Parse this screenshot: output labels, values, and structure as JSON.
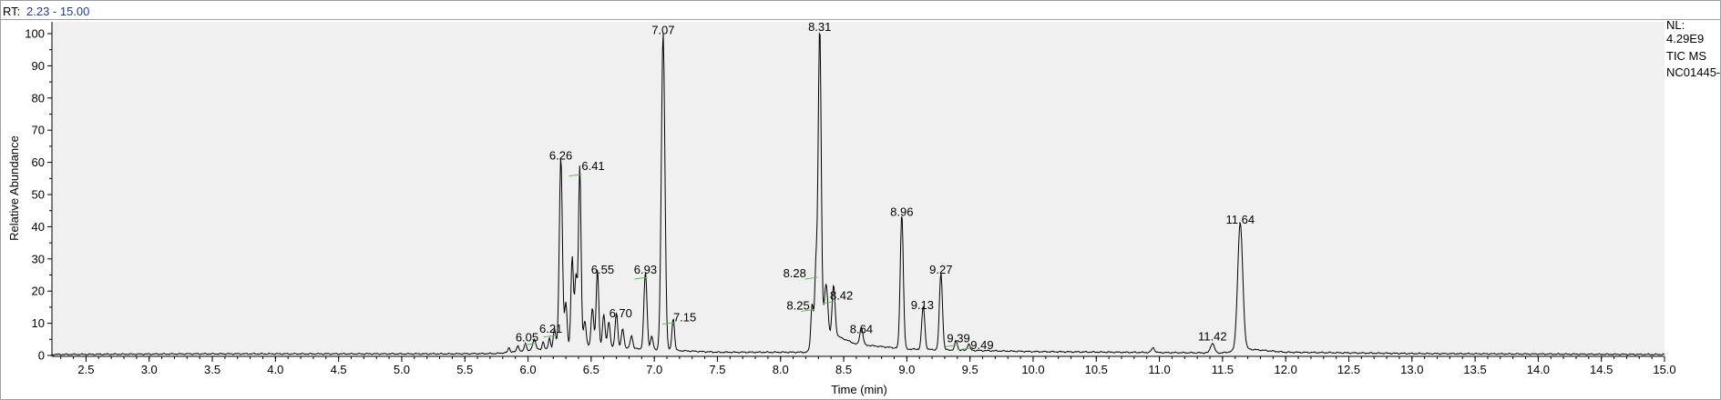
{
  "header": {
    "rt_label": "RT:",
    "rt_range": "2.23 - 15.00"
  },
  "info_panel": {
    "nl_label": "NL:",
    "nl_value": "4.29E9",
    "scan_type": "TIC  MS",
    "file_name": "NC01445-"
  },
  "colors": {
    "trace": "#000000",
    "plot_background": "#f0f0f0",
    "rt_value": "#1f3c96",
    "peak_marker": "#5fb85f"
  },
  "chart_data": {
    "type": "line",
    "title": "",
    "xlabel": "Time (min)",
    "ylabel": "Relative Abundance",
    "xlim": [
      2.23,
      15.0
    ],
    "ylim": [
      0,
      100
    ],
    "x_ticks": [
      2.5,
      3.0,
      3.5,
      4.0,
      4.5,
      5.0,
      5.5,
      6.0,
      6.5,
      7.0,
      7.5,
      8.0,
      8.5,
      9.0,
      9.5,
      10.0,
      10.5,
      11.0,
      11.5,
      12.0,
      12.5,
      13.0,
      13.5,
      14.0,
      14.5,
      15.0
    ],
    "x_tick_labels": [
      "2.5",
      "3.0",
      "3.5",
      "4.0",
      "4.5",
      "5.0",
      "5.5",
      "6.0",
      "6.5",
      "7.0",
      "7.5",
      "8.0",
      "8.5",
      "9.0",
      "9.5",
      "10.0",
      "10.5",
      "11.0",
      "11.5",
      "12.0",
      "12.5",
      "13.0",
      "13.5",
      "14.0",
      "14.5",
      "15.0"
    ],
    "y_ticks": [
      0,
      10,
      20,
      30,
      40,
      50,
      60,
      70,
      80,
      90,
      100
    ],
    "y_tick_labels": [
      "0",
      "10",
      "20",
      "30",
      "40",
      "50",
      "60",
      "70",
      "80",
      "90",
      "100"
    ],
    "baseline": [
      [
        2.23,
        0.3
      ],
      [
        3.4,
        0.5
      ],
      [
        4.6,
        0.5
      ],
      [
        5.4,
        0.5
      ],
      [
        5.75,
        0.6
      ],
      [
        6.0,
        1.5
      ],
      [
        6.5,
        3.0
      ],
      [
        6.9,
        2.0
      ],
      [
        7.5,
        1.0
      ],
      [
        8.2,
        1.0
      ],
      [
        8.45,
        6.0
      ],
      [
        8.6,
        3.5
      ],
      [
        9.0,
        2.0
      ],
      [
        9.6,
        1.5
      ],
      [
        10.0,
        1.2
      ],
      [
        11.0,
        0.9
      ],
      [
        11.5,
        0.8
      ],
      [
        11.7,
        2.0
      ],
      [
        12.0,
        1.0
      ],
      [
        13.0,
        0.6
      ],
      [
        15.0,
        0.3
      ]
    ],
    "peaks": [
      {
        "rt": 5.85,
        "height": 1.5,
        "width": 0.008
      },
      {
        "rt": 5.92,
        "height": 2.0,
        "width": 0.008
      },
      {
        "rt": 5.98,
        "height": 2.5,
        "width": 0.008
      },
      {
        "rt": 6.05,
        "height": 3.5,
        "width": 0.012,
        "label": "6.05"
      },
      {
        "rt": 6.12,
        "height": 2.5,
        "width": 0.008
      },
      {
        "rt": 6.17,
        "height": 3.5,
        "width": 0.008
      },
      {
        "rt": 6.21,
        "height": 6.0,
        "width": 0.01,
        "label": "6.21"
      },
      {
        "rt": 6.26,
        "height": 59.5,
        "width": 0.012,
        "label": "6.26"
      },
      {
        "rt": 6.3,
        "height": 14.0,
        "width": 0.01
      },
      {
        "rt": 6.35,
        "height": 28.0,
        "width": 0.01
      },
      {
        "rt": 6.38,
        "height": 22.0,
        "width": 0.01
      },
      {
        "rt": 6.41,
        "height": 56.0,
        "width": 0.01,
        "label": "6.41"
      },
      {
        "rt": 6.45,
        "height": 8.0,
        "width": 0.01
      },
      {
        "rt": 6.51,
        "height": 12.0,
        "width": 0.01
      },
      {
        "rt": 6.55,
        "height": 24.0,
        "width": 0.01,
        "label": "6.55"
      },
      {
        "rt": 6.6,
        "height": 10.0,
        "width": 0.01
      },
      {
        "rt": 6.64,
        "height": 8.0,
        "width": 0.01
      },
      {
        "rt": 6.7,
        "height": 11.0,
        "width": 0.01,
        "label": "6.70"
      },
      {
        "rt": 6.75,
        "height": 6.0,
        "width": 0.01
      },
      {
        "rt": 6.82,
        "height": 4.0,
        "width": 0.01
      },
      {
        "rt": 6.93,
        "height": 24.0,
        "width": 0.012,
        "label": "6.93"
      },
      {
        "rt": 6.98,
        "height": 4.0,
        "width": 0.01
      },
      {
        "rt": 7.07,
        "height": 98.5,
        "width": 0.014,
        "label": "7.07"
      },
      {
        "rt": 7.15,
        "height": 10.0,
        "width": 0.01,
        "label": "7.15"
      },
      {
        "rt": 8.25,
        "height": 14.0,
        "width": 0.01,
        "label": "8.25"
      },
      {
        "rt": 8.28,
        "height": 24.0,
        "width": 0.01,
        "label": "8.28"
      },
      {
        "rt": 8.31,
        "height": 99.5,
        "width": 0.012,
        "label": "8.31"
      },
      {
        "rt": 8.36,
        "height": 18.0,
        "width": 0.015
      },
      {
        "rt": 8.42,
        "height": 16.5,
        "width": 0.012,
        "label": "8.42"
      },
      {
        "rt": 8.64,
        "height": 5.5,
        "width": 0.012,
        "label": "8.64"
      },
      {
        "rt": 8.96,
        "height": 42.0,
        "width": 0.012,
        "label": "8.96"
      },
      {
        "rt": 9.13,
        "height": 13.5,
        "width": 0.012,
        "label": "9.13"
      },
      {
        "rt": 9.27,
        "height": 24.0,
        "width": 0.012,
        "label": "9.27"
      },
      {
        "rt": 9.39,
        "height": 3.0,
        "width": 0.01,
        "label": "9.39"
      },
      {
        "rt": 9.49,
        "height": 2.0,
        "width": 0.01,
        "label": "9.49"
      },
      {
        "rt": 10.95,
        "height": 1.5,
        "width": 0.012
      },
      {
        "rt": 11.42,
        "height": 3.0,
        "width": 0.015,
        "label": "11.42"
      },
      {
        "rt": 11.64,
        "height": 39.5,
        "width": 0.02,
        "label": "11.64"
      }
    ]
  }
}
